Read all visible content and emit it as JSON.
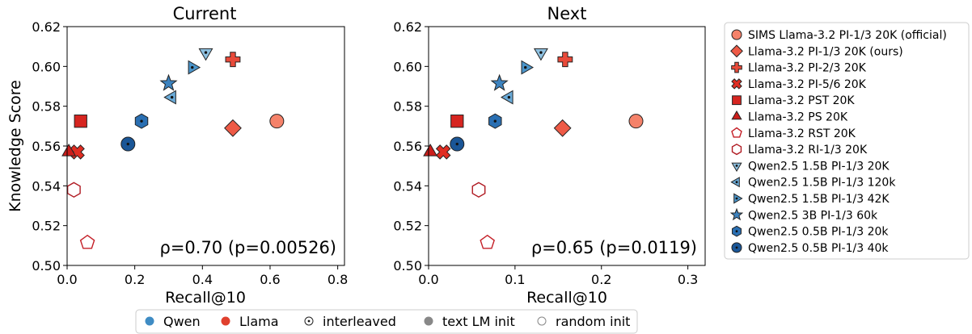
{
  "chart_data": [
    {
      "type": "scatter",
      "title": "Current",
      "xlabel": "Recall@10",
      "ylabel": "Knowledge Score",
      "xlim": [
        0.0,
        0.82
      ],
      "ylim": [
        0.5,
        0.62
      ],
      "xticks": [
        "0.0",
        "0.2",
        "0.4",
        "0.6",
        "0.8"
      ],
      "xtick_values": [
        0.0,
        0.2,
        0.4,
        0.6,
        0.8
      ],
      "yticks": [
        "0.50",
        "0.52",
        "0.54",
        "0.56",
        "0.58",
        "0.60",
        "0.62"
      ],
      "ytick_values": [
        0.5,
        0.52,
        0.54,
        0.56,
        0.58,
        0.6,
        0.62
      ],
      "annotation": "ρ=0.70 (p=0.00526)",
      "points": [
        {
          "series": 0,
          "x": 0.62,
          "y": 0.5725
        },
        {
          "series": 1,
          "x": 0.49,
          "y": 0.569
        },
        {
          "series": 2,
          "x": 0.49,
          "y": 0.6035
        },
        {
          "series": 3,
          "x": 0.03,
          "y": 0.557
        },
        {
          "series": 4,
          "x": 0.04,
          "y": 0.5725
        },
        {
          "series": 5,
          "x": 0.005,
          "y": 0.557
        },
        {
          "series": 6,
          "x": 0.06,
          "y": 0.5115
        },
        {
          "series": 7,
          "x": 0.02,
          "y": 0.538
        },
        {
          "series": 8,
          "x": 0.41,
          "y": 0.607
        },
        {
          "series": 9,
          "x": 0.31,
          "y": 0.5845
        },
        {
          "series": 10,
          "x": 0.37,
          "y": 0.5995
        },
        {
          "series": 11,
          "x": 0.3,
          "y": 0.5915
        },
        {
          "series": 12,
          "x": 0.22,
          "y": 0.5725
        },
        {
          "series": 13,
          "x": 0.18,
          "y": 0.561
        }
      ]
    },
    {
      "type": "scatter",
      "title": "Next",
      "xlabel": "Recall@10",
      "ylabel": "",
      "xlim": [
        0.0,
        0.32
      ],
      "ylim": [
        0.5,
        0.62
      ],
      "xticks": [
        "0.0",
        "0.1",
        "0.2",
        "0.3"
      ],
      "xtick_values": [
        0.0,
        0.1,
        0.2,
        0.3
      ],
      "yticks": [
        "0.50",
        "0.52",
        "0.54",
        "0.56",
        "0.58",
        "0.60",
        "0.62"
      ],
      "ytick_values": [
        0.5,
        0.52,
        0.54,
        0.56,
        0.58,
        0.6,
        0.62
      ],
      "annotation": "ρ=0.65 (p=0.0119)",
      "points": [
        {
          "series": 0,
          "x": 0.24,
          "y": 0.5725
        },
        {
          "series": 1,
          "x": 0.155,
          "y": 0.569
        },
        {
          "series": 2,
          "x": 0.158,
          "y": 0.6035
        },
        {
          "series": 3,
          "x": 0.017,
          "y": 0.557
        },
        {
          "series": 4,
          "x": 0.033,
          "y": 0.5725
        },
        {
          "series": 5,
          "x": 0.002,
          "y": 0.557
        },
        {
          "series": 6,
          "x": 0.068,
          "y": 0.5115
        },
        {
          "series": 7,
          "x": 0.058,
          "y": 0.538
        },
        {
          "series": 8,
          "x": 0.13,
          "y": 0.607
        },
        {
          "series": 9,
          "x": 0.093,
          "y": 0.5845
        },
        {
          "series": 10,
          "x": 0.112,
          "y": 0.5995
        },
        {
          "series": 11,
          "x": 0.082,
          "y": 0.5915
        },
        {
          "series": 12,
          "x": 0.077,
          "y": 0.5725
        },
        {
          "series": 13,
          "x": 0.033,
          "y": 0.561
        }
      ]
    }
  ],
  "legend": {
    "placement": "right",
    "entries": [
      {
        "label": "SIMS Llama-3.2 PI-1/3 20K (official)",
        "marker": "circle",
        "fill": "#f5826a",
        "edge": "#222222",
        "dot": false
      },
      {
        "label": "Llama-3.2 PI-1/3 20K (ours)",
        "marker": "diamond",
        "fill": "#ee5a46",
        "edge": "#222222",
        "dot": false
      },
      {
        "label": "Llama-3.2 PI-2/3 20K",
        "marker": "plus",
        "fill": "#e84a3a",
        "edge": "#222222",
        "dot": false
      },
      {
        "label": "Llama-3.2 PI-5/6 20K",
        "marker": "x",
        "fill": "#e02d22",
        "edge": "#222222",
        "dot": false
      },
      {
        "label": "Llama-3.2 PST 20K",
        "marker": "square",
        "fill": "#d62520",
        "edge": "#222222",
        "dot": false
      },
      {
        "label": "Llama-3.2 PS 20K",
        "marker": "triangle-up",
        "fill": "#cc1e1b",
        "edge": "#222222",
        "dot": false
      },
      {
        "label": "Llama-3.2 RST 20K",
        "marker": "pentagon",
        "fill": "#ffffff",
        "edge": "#c41f27",
        "dot": false
      },
      {
        "label": "Llama-3.2 RI-1/3 20K",
        "marker": "hexagon",
        "fill": "#ffffff",
        "edge": "#b01a22",
        "dot": false
      },
      {
        "label": "Qwen2.5 1.5B PI-1/3 20K",
        "marker": "triangle-down",
        "fill": "#8ec1e1",
        "edge": "#222222",
        "dot": true
      },
      {
        "label": "Qwen2.5 1.5B PI-1/3 120k",
        "marker": "triangle-left",
        "fill": "#6aaad7",
        "edge": "#222222",
        "dot": true
      },
      {
        "label": "Qwen2.5 1.5B PI-1/3 42K",
        "marker": "triangle-right",
        "fill": "#4b95ca",
        "edge": "#222222",
        "dot": true
      },
      {
        "label": "Qwen2.5 3B PI-1/3 60k",
        "marker": "star",
        "fill": "#3d83bf",
        "edge": "#222222",
        "dot": false
      },
      {
        "label": "Qwen2.5 0.5B PI-1/3 20k",
        "marker": "hexagon",
        "fill": "#2a6fb2",
        "edge": "#222222",
        "dot": true
      },
      {
        "label": "Qwen2.5 0.5B PI-1/3 40k",
        "marker": "circle",
        "fill": "#1a5697",
        "edge": "#222222",
        "dot": true
      }
    ]
  },
  "bottom_legend": {
    "placement": "bottom-center",
    "entries": [
      {
        "label": "Qwen",
        "marker": "circle",
        "fill": "#3f8cc4",
        "edge": "#3f8cc4",
        "dot": false
      },
      {
        "label": "Llama",
        "marker": "circle",
        "fill": "#e0402e",
        "edge": "#e0402e",
        "dot": false
      },
      {
        "label": "interleaved",
        "marker": "circle",
        "fill": "#ffffff",
        "edge": "#222222",
        "dot": true
      },
      {
        "label": "text LM init",
        "marker": "circle",
        "fill": "#888888",
        "edge": "#888888",
        "dot": false
      },
      {
        "label": "random init",
        "marker": "circle",
        "fill": "#ffffff",
        "edge": "#888888",
        "dot": false
      }
    ]
  }
}
